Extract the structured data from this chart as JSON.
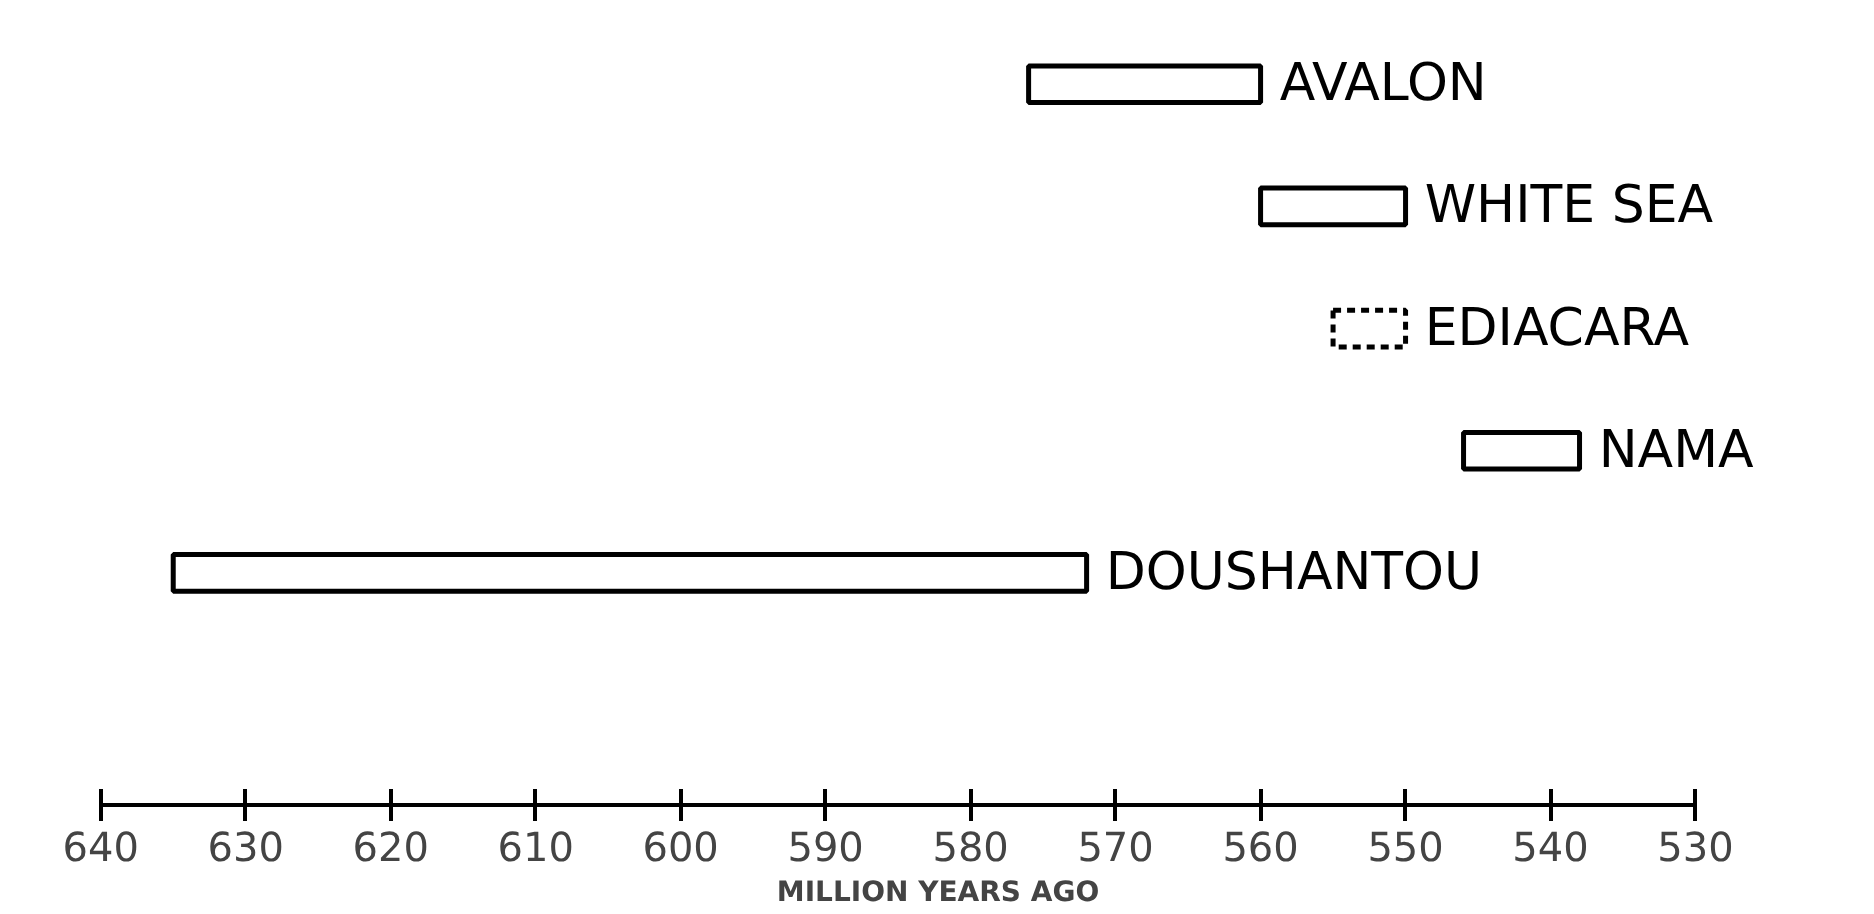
{
  "chart_data": {
    "type": "bar",
    "orientation": "horizontal",
    "categories": [
      "AVALON",
      "WHITE SEA",
      "EDIACARA",
      "NAMA",
      "DOUSHANTOU"
    ],
    "series": [
      {
        "color": "#000000",
        "line_style": "solid",
        "base": [
          560,
          550,
          null,
          538,
          572
        ],
        "values": [
          16,
          10,
          null,
          8,
          63
        ]
      },
      {
        "color": "#000000",
        "line_style": "dashed",
        "base": [
          null,
          null,
          550,
          null,
          null
        ],
        "values": [
          null,
          null,
          5,
          null,
          null
        ]
      }
    ],
    "xlabel": "MILLION YEARS AGO",
    "xlim": [
      640,
      530
    ],
    "xticks": [
      640,
      630,
      620,
      610,
      600,
      590,
      580,
      570,
      560,
      550,
      540,
      530
    ],
    "grid": false
  }
}
